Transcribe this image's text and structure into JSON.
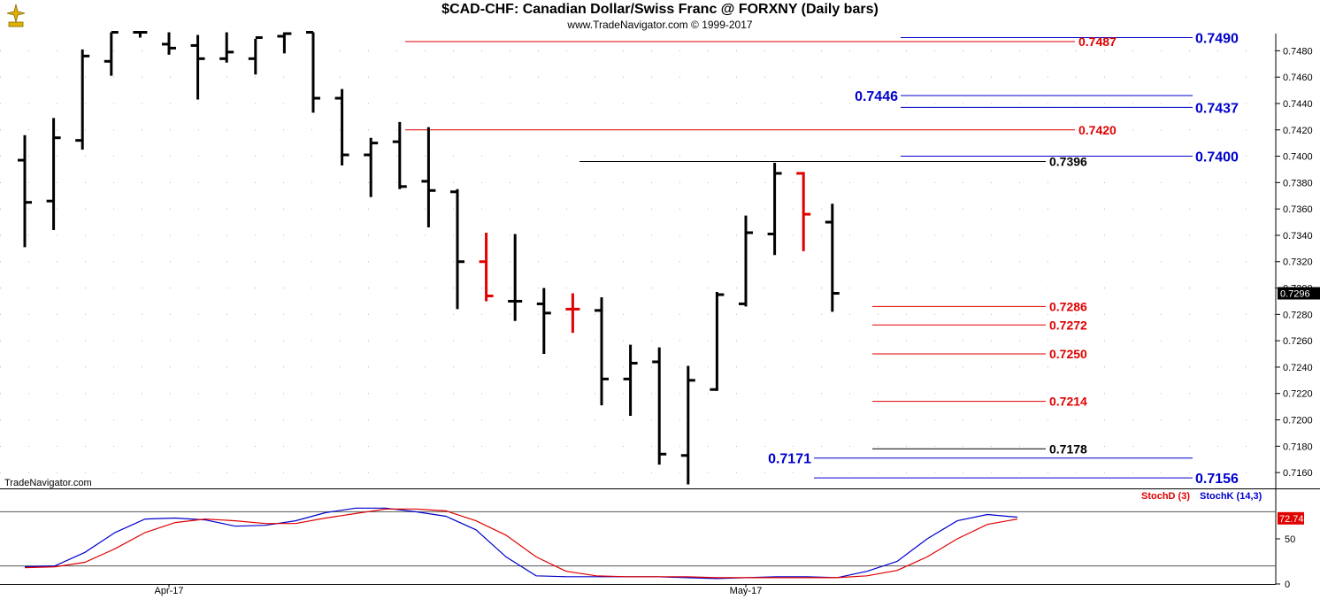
{
  "title": "$CAD-CHF:  Canadian Dollar/Swiss Franc @ FORXNY  (Daily bars)",
  "copyright": "www.TradeNavigator.com © 1999-2017",
  "watermark": "TradeNavigator.com",
  "colors": {
    "bar": "#000000",
    "bar_highlight": "#e00000",
    "red_level": "#e00000",
    "blue_level": "#0000cc",
    "black_level": "#000000",
    "stoch_k": "#0000cc",
    "stoch_d": "#e00000"
  },
  "chart_data": [
    {
      "type": "ohlc",
      "title": "$CAD-CHF:  Canadian Dollar/Swiss Franc @ FORXNY  (Daily bars)",
      "ylim": [
        0.7148,
        0.7493
      ],
      "y_ticks": [
        "0.7160",
        "0.7180",
        "0.7200",
        "0.7220",
        "0.7240",
        "0.7260",
        "0.7280",
        "0.7300",
        "0.7320",
        "0.7340",
        "0.7360",
        "0.7380",
        "0.7400",
        "0.7420",
        "0.7440",
        "0.7460",
        "0.7480"
      ],
      "last_price_label": "0.7296",
      "x_labels": [
        {
          "label": "Apr-17",
          "bar_index": 5
        },
        {
          "label": "May-17",
          "bar_index": 25
        }
      ],
      "bars": [
        {
          "o": 0.7397,
          "h": 0.7416,
          "l": 0.7331,
          "c": 0.7365,
          "color": "black"
        },
        {
          "o": 0.7366,
          "h": 0.7429,
          "l": 0.7344,
          "c": 0.7414,
          "color": "black"
        },
        {
          "o": 0.7412,
          "h": 0.7481,
          "l": 0.7405,
          "c": 0.7476,
          "color": "black"
        },
        {
          "o": 0.7472,
          "h": 0.7494,
          "l": 0.7461,
          "c": 0.7494,
          "color": "black"
        },
        {
          "o": 0.7494,
          "h": 0.7494,
          "l": 0.749,
          "c": 0.7494,
          "color": "black"
        },
        {
          "o": 0.7485,
          "h": 0.7494,
          "l": 0.7477,
          "c": 0.7482,
          "color": "black"
        },
        {
          "o": 0.7484,
          "h": 0.7492,
          "l": 0.7443,
          "c": 0.7474,
          "color": "black"
        },
        {
          "o": 0.7474,
          "h": 0.7494,
          "l": 0.7471,
          "c": 0.7479,
          "color": "black"
        },
        {
          "o": 0.7474,
          "h": 0.7489,
          "l": 0.7462,
          "c": 0.749,
          "color": "black"
        },
        {
          "o": 0.7491,
          "h": 0.7494,
          "l": 0.7478,
          "c": 0.7493,
          "color": "black"
        },
        {
          "o": 0.7494,
          "h": 0.7494,
          "l": 0.7433,
          "c": 0.7444,
          "color": "black"
        },
        {
          "o": 0.7444,
          "h": 0.7451,
          "l": 0.7393,
          "c": 0.7401,
          "color": "black"
        },
        {
          "o": 0.7401,
          "h": 0.7414,
          "l": 0.7369,
          "c": 0.741,
          "color": "black"
        },
        {
          "o": 0.7411,
          "h": 0.7426,
          "l": 0.7375,
          "c": 0.7377,
          "color": "black"
        },
        {
          "o": 0.7381,
          "h": 0.7422,
          "l": 0.7346,
          "c": 0.7374,
          "color": "black"
        },
        {
          "o": 0.7373,
          "h": 0.7375,
          "l": 0.7284,
          "c": 0.732,
          "color": "black"
        },
        {
          "o": 0.732,
          "h": 0.7342,
          "l": 0.729,
          "c": 0.7294,
          "color": "red"
        },
        {
          "o": 0.729,
          "h": 0.7341,
          "l": 0.7275,
          "c": 0.729,
          "color": "black"
        },
        {
          "o": 0.7288,
          "h": 0.73,
          "l": 0.725,
          "c": 0.7281,
          "color": "black"
        },
        {
          "o": 0.7284,
          "h": 0.7296,
          "l": 0.7266,
          "c": 0.7284,
          "color": "red"
        },
        {
          "o": 0.7283,
          "h": 0.7293,
          "l": 0.7211,
          "c": 0.7231,
          "color": "black"
        },
        {
          "o": 0.7231,
          "h": 0.7257,
          "l": 0.7203,
          "c": 0.7243,
          "color": "black"
        },
        {
          "o": 0.7244,
          "h": 0.7255,
          "l": 0.7166,
          "c": 0.7174,
          "color": "black"
        },
        {
          "o": 0.7173,
          "h": 0.7241,
          "l": 0.7151,
          "c": 0.723,
          "color": "black"
        },
        {
          "o": 0.7223,
          "h": 0.7297,
          "l": 0.7222,
          "c": 0.7295,
          "color": "black"
        },
        {
          "o": 0.7288,
          "h": 0.7355,
          "l": 0.7286,
          "c": 0.7342,
          "color": "black"
        },
        {
          "o": 0.7341,
          "h": 0.7395,
          "l": 0.7325,
          "c": 0.7387,
          "color": "black"
        },
        {
          "o": 0.7387,
          "h": 0.7388,
          "l": 0.7328,
          "c": 0.7356,
          "color": "red"
        },
        {
          "o": 0.735,
          "h": 0.7364,
          "l": 0.7282,
          "c": 0.7296,
          "color": "black"
        }
      ],
      "levels": [
        {
          "value": 0.749,
          "label": "0.7490",
          "color": "blue",
          "label_side": "right-large"
        },
        {
          "value": 0.7487,
          "label": "0.7487",
          "color": "red",
          "label_side": "right"
        },
        {
          "value": 0.7446,
          "label": "0.7446",
          "color": "blue",
          "label_side": "left-large"
        },
        {
          "value": 0.7437,
          "label": "0.7437",
          "color": "blue",
          "label_side": "right-large"
        },
        {
          "value": 0.742,
          "label": "0.7420",
          "color": "red",
          "label_side": "right"
        },
        {
          "value": 0.74,
          "label": "0.7400",
          "color": "blue",
          "label_side": "right-large"
        },
        {
          "value": 0.7396,
          "label": "0.7396",
          "color": "black",
          "label_side": "right"
        },
        {
          "value": 0.7286,
          "label": "0.7286",
          "color": "red",
          "label_side": "right"
        },
        {
          "value": 0.7272,
          "label": "0.7272",
          "color": "red",
          "label_side": "right"
        },
        {
          "value": 0.725,
          "label": "0.7250",
          "color": "red",
          "label_side": "right"
        },
        {
          "value": 0.7214,
          "label": "0.7214",
          "color": "red",
          "label_side": "right"
        },
        {
          "value": 0.7178,
          "label": "0.7178",
          "color": "black",
          "label_side": "right"
        },
        {
          "value": 0.7171,
          "label": "0.7171",
          "color": "blue",
          "label_side": "left-large"
        },
        {
          "value": 0.7156,
          "label": "0.7156",
          "color": "blue",
          "label_side": "right-large"
        }
      ]
    },
    {
      "type": "line",
      "ylim": [
        0,
        100
      ],
      "y_ticks": [
        "50",
        "0"
      ],
      "reference_lines": [
        20,
        80
      ],
      "last_value_label": "72.74",
      "legend": [
        "StochD (3)",
        "StochK (14,3)"
      ],
      "series": [
        {
          "name": "StochK (14,3)",
          "color": "blue",
          "values": [
            19,
            20,
            35,
            57,
            72,
            73,
            71,
            64,
            65,
            70,
            79,
            84,
            84,
            80,
            75,
            60,
            30,
            9,
            8,
            8,
            8,
            8,
            7,
            6,
            7,
            8,
            8,
            7,
            14,
            25,
            50,
            70,
            77,
            74
          ]
        },
        {
          "name": "StochD (3)",
          "color": "red",
          "values": [
            18,
            19,
            24,
            39,
            57,
            68,
            72,
            70,
            67,
            67,
            73,
            78,
            83,
            83,
            81,
            70,
            54,
            30,
            14,
            9,
            8,
            8,
            8,
            7,
            7,
            7,
            7,
            7,
            9,
            15,
            30,
            50,
            66,
            72
          ]
        }
      ]
    }
  ]
}
